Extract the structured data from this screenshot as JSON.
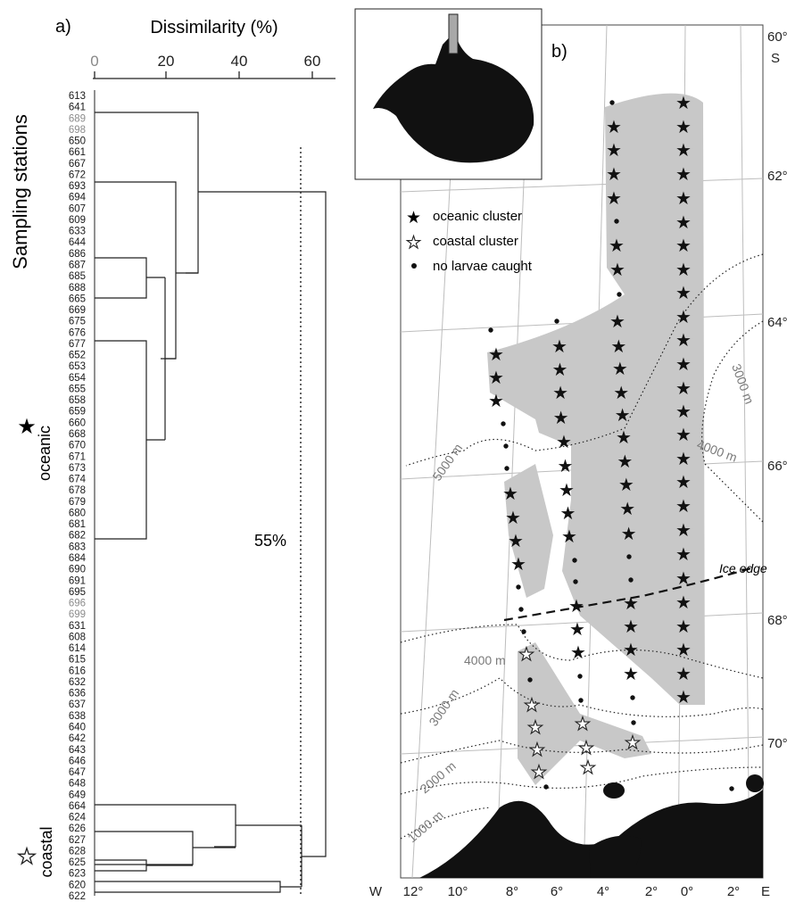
{
  "panel_a": {
    "label": "a)",
    "axis_title": "Dissimilarity (%)",
    "ticks": [
      "0",
      "20",
      "40",
      "60"
    ],
    "y_title": "Sampling stations",
    "stations": [
      "613",
      "641",
      "689",
      "698",
      "650",
      "661",
      "667",
      "672",
      "693",
      "694",
      "607",
      "609",
      "633",
      "644",
      "686",
      "687",
      "685",
      "688",
      "665",
      "669",
      "675",
      "676",
      "677",
      "652",
      "653",
      "654",
      "655",
      "658",
      "659",
      "660",
      "668",
      "670",
      "671",
      "673",
      "674",
      "678",
      "679",
      "680",
      "681",
      "682",
      "683",
      "684",
      "690",
      "691",
      "695",
      "696",
      "699",
      "631",
      "608",
      "614",
      "615",
      "616",
      "632",
      "636",
      "637",
      "638",
      "640",
      "642",
      "643",
      "646",
      "647",
      "648",
      "649",
      "664",
      "624",
      "626",
      "627",
      "628",
      "625",
      "623",
      "620",
      "622"
    ],
    "grey_stations": [
      "689",
      "698",
      "696",
      "699"
    ],
    "threshold_label": "55%",
    "threshold_value": 55,
    "cluster_oceanic": "oceanic",
    "cluster_coastal": "coastal"
  },
  "panel_b": {
    "label": "b)",
    "legend": {
      "oceanic": "oceanic cluster",
      "coastal": "coastal cluster",
      "none": "no larvae caught"
    },
    "lat_labels": [
      "60°",
      "62°",
      "64°",
      "66°",
      "68°",
      "70°"
    ],
    "lat_hemisphere": "S",
    "lon_labels": [
      "W",
      "12°",
      "10°",
      "8°",
      "6°",
      "4°",
      "2°",
      "0°",
      "2°",
      "E"
    ],
    "ice_edge": "Ice edge",
    "isobaths": [
      "5000 m",
      "4000 m",
      "3000 m",
      "4000 m",
      "3000 m",
      "2000 m",
      "1000 m"
    ],
    "colors": {
      "cluster_shade": "#c8c8c8",
      "land": "#111111",
      "grid": "#bdbdbd",
      "isobath_label": "#7a7a7a"
    }
  }
}
